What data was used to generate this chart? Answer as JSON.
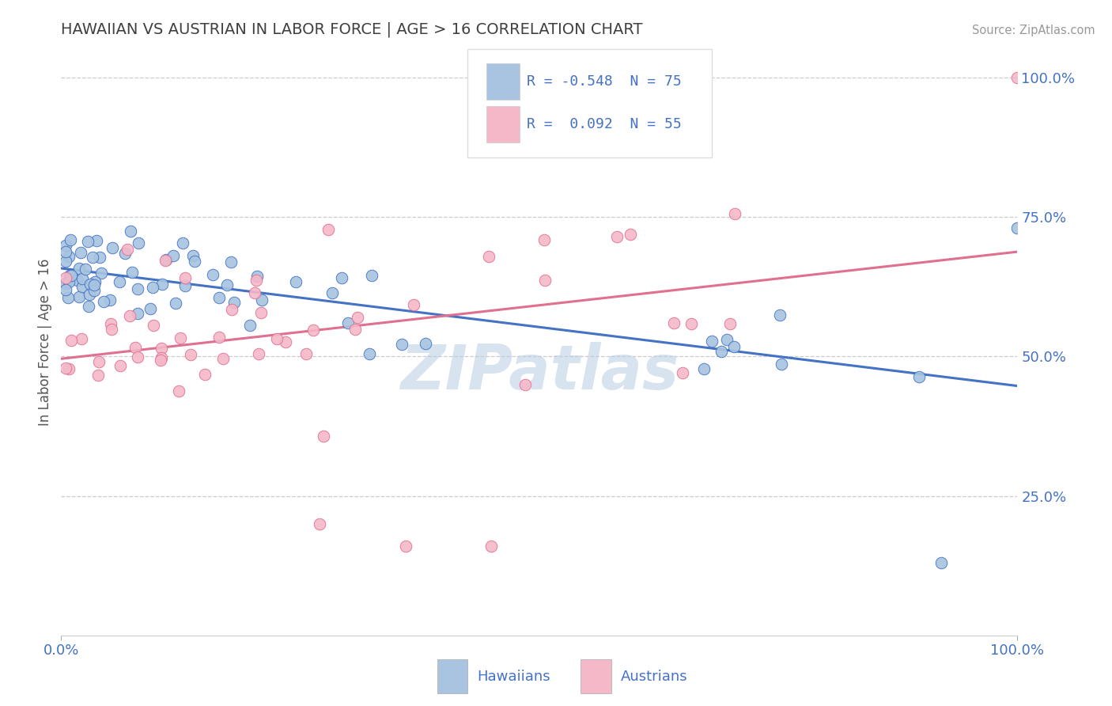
{
  "title": "HAWAIIAN VS AUSTRIAN IN LABOR FORCE | AGE > 16 CORRELATION CHART",
  "source": "Source: ZipAtlas.com",
  "ylabel": "In Labor Force | Age > 16",
  "ytick_labels": [
    "25.0%",
    "50.0%",
    "75.0%",
    "100.0%"
  ],
  "ytick_values": [
    0.25,
    0.5,
    0.75,
    1.0
  ],
  "legend_hawaiians_R": "-0.548",
  "legend_hawaiians_N": "75",
  "legend_austrians_R": "0.092",
  "legend_austrians_N": "55",
  "hawaiian_color": "#a8c4e0",
  "austrian_color": "#f4b8c8",
  "hawaiian_line_color": "#4472c4",
  "austrian_line_color": "#e07090",
  "title_color": "#404040",
  "axis_label_color": "#4472c4",
  "watermark_text": "ZIPatlas",
  "watermark_color": "#b8cce4",
  "background_color": "#ffffff",
  "grid_color": "#cccccc",
  "source_color": "#999999"
}
